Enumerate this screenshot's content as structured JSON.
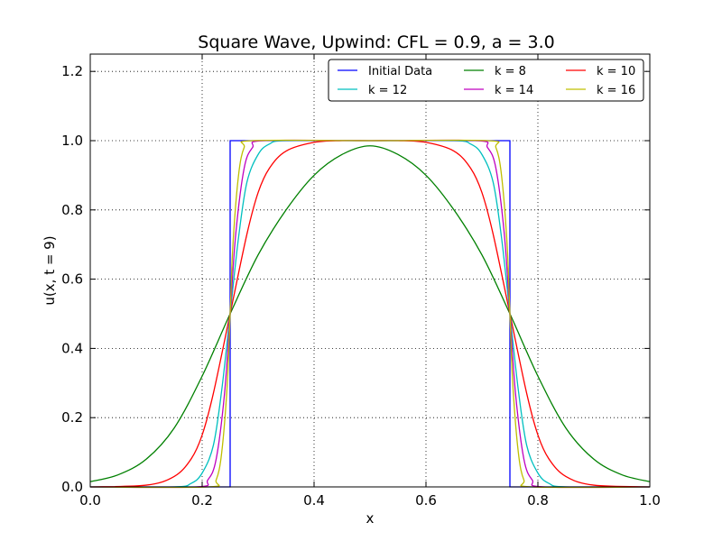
{
  "chart_data": {
    "type": "line",
    "title": "Square Wave, Upwind: CFL = 0.9, a = 3.0",
    "xlabel": "x",
    "ylabel": "u(x, t = 9)",
    "xlim": [
      0.0,
      1.0
    ],
    "ylim": [
      0.0,
      1.25
    ],
    "xticks": [
      "0.0",
      "0.2",
      "0.4",
      "0.6",
      "0.8",
      "1.0"
    ],
    "xtick_values": [
      0.0,
      0.2,
      0.4,
      0.6,
      0.8,
      1.0
    ],
    "yticks": [
      "0.0",
      "0.2",
      "0.4",
      "0.6",
      "0.8",
      "1.0",
      "1.2"
    ],
    "ytick_values": [
      0.0,
      0.2,
      0.4,
      0.6,
      0.8,
      1.0,
      1.2
    ],
    "grid": true,
    "legend_position": "top-right",
    "legend_columns": 3,
    "series": [
      {
        "name": "Initial Data",
        "color": "#0000ff",
        "x": [
          0.0,
          0.25,
          0.25,
          0.75,
          0.75,
          1.0
        ],
        "y": [
          0.0,
          0.0,
          1.0,
          1.0,
          0.0,
          0.0
        ]
      },
      {
        "name": "k = 8",
        "color": "#008000",
        "x": [
          0.0,
          0.05,
          0.1,
          0.15,
          0.2,
          0.25,
          0.3,
          0.35,
          0.4,
          0.45,
          0.5,
          0.55,
          0.6,
          0.65,
          0.7,
          0.75,
          0.8,
          0.85,
          0.9,
          0.95,
          1.0
        ],
        "y": [
          0.015,
          0.035,
          0.08,
          0.17,
          0.32,
          0.5,
          0.67,
          0.8,
          0.9,
          0.96,
          0.985,
          0.96,
          0.9,
          0.8,
          0.67,
          0.5,
          0.32,
          0.17,
          0.08,
          0.035,
          0.015
        ]
      },
      {
        "name": "k = 10",
        "color": "#ff0000",
        "x": [
          0.0,
          0.1,
          0.15,
          0.18,
          0.2,
          0.22,
          0.25,
          0.28,
          0.3,
          0.32,
          0.35,
          0.4,
          0.45,
          0.5,
          0.55,
          0.6,
          0.65,
          0.68,
          0.7,
          0.72,
          0.75,
          0.78,
          0.8,
          0.82,
          0.85,
          0.9,
          1.0
        ],
        "y": [
          0.0,
          0.005,
          0.03,
          0.08,
          0.15,
          0.27,
          0.5,
          0.73,
          0.85,
          0.92,
          0.97,
          0.995,
          1.0,
          1.0,
          1.0,
          0.995,
          0.97,
          0.92,
          0.85,
          0.73,
          0.5,
          0.27,
          0.15,
          0.08,
          0.03,
          0.005,
          0.0
        ]
      },
      {
        "name": "k = 12",
        "color": "#00bfbf",
        "x": [
          0.0,
          0.15,
          0.18,
          0.2,
          0.22,
          0.235,
          0.25,
          0.265,
          0.28,
          0.3,
          0.32,
          0.35,
          0.5,
          0.65,
          0.68,
          0.7,
          0.72,
          0.735,
          0.75,
          0.765,
          0.78,
          0.8,
          0.82,
          0.85,
          1.0
        ],
        "y": [
          0.0,
          0.0,
          0.01,
          0.04,
          0.12,
          0.28,
          0.5,
          0.72,
          0.88,
          0.96,
          0.99,
          1.0,
          1.0,
          1.0,
          0.99,
          0.96,
          0.88,
          0.72,
          0.5,
          0.28,
          0.12,
          0.04,
          0.01,
          0.0,
          0.0
        ]
      },
      {
        "name": "k = 14",
        "color": "#bf00bf",
        "x": [
          0.0,
          0.19,
          0.21,
          0.225,
          0.24,
          0.25,
          0.26,
          0.275,
          0.29,
          0.31,
          0.5,
          0.69,
          0.71,
          0.725,
          0.74,
          0.75,
          0.76,
          0.775,
          0.79,
          0.81,
          1.0
        ],
        "y": [
          0.0,
          0.0,
          0.02,
          0.08,
          0.27,
          0.5,
          0.73,
          0.92,
          0.98,
          1.0,
          1.0,
          1.0,
          0.98,
          0.92,
          0.73,
          0.5,
          0.27,
          0.08,
          0.02,
          0.0,
          0.0
        ]
      },
      {
        "name": "k = 16",
        "color": "#bfbf00",
        "x": [
          0.0,
          0.21,
          0.225,
          0.235,
          0.245,
          0.25,
          0.255,
          0.265,
          0.275,
          0.29,
          0.5,
          0.71,
          0.725,
          0.735,
          0.745,
          0.75,
          0.755,
          0.765,
          0.775,
          0.79,
          1.0
        ],
        "y": [
          0.0,
          0.0,
          0.02,
          0.1,
          0.3,
          0.5,
          0.7,
          0.9,
          0.98,
          1.0,
          1.0,
          1.0,
          0.98,
          0.9,
          0.7,
          0.5,
          0.3,
          0.1,
          0.02,
          0.0,
          0.0
        ]
      }
    ]
  }
}
